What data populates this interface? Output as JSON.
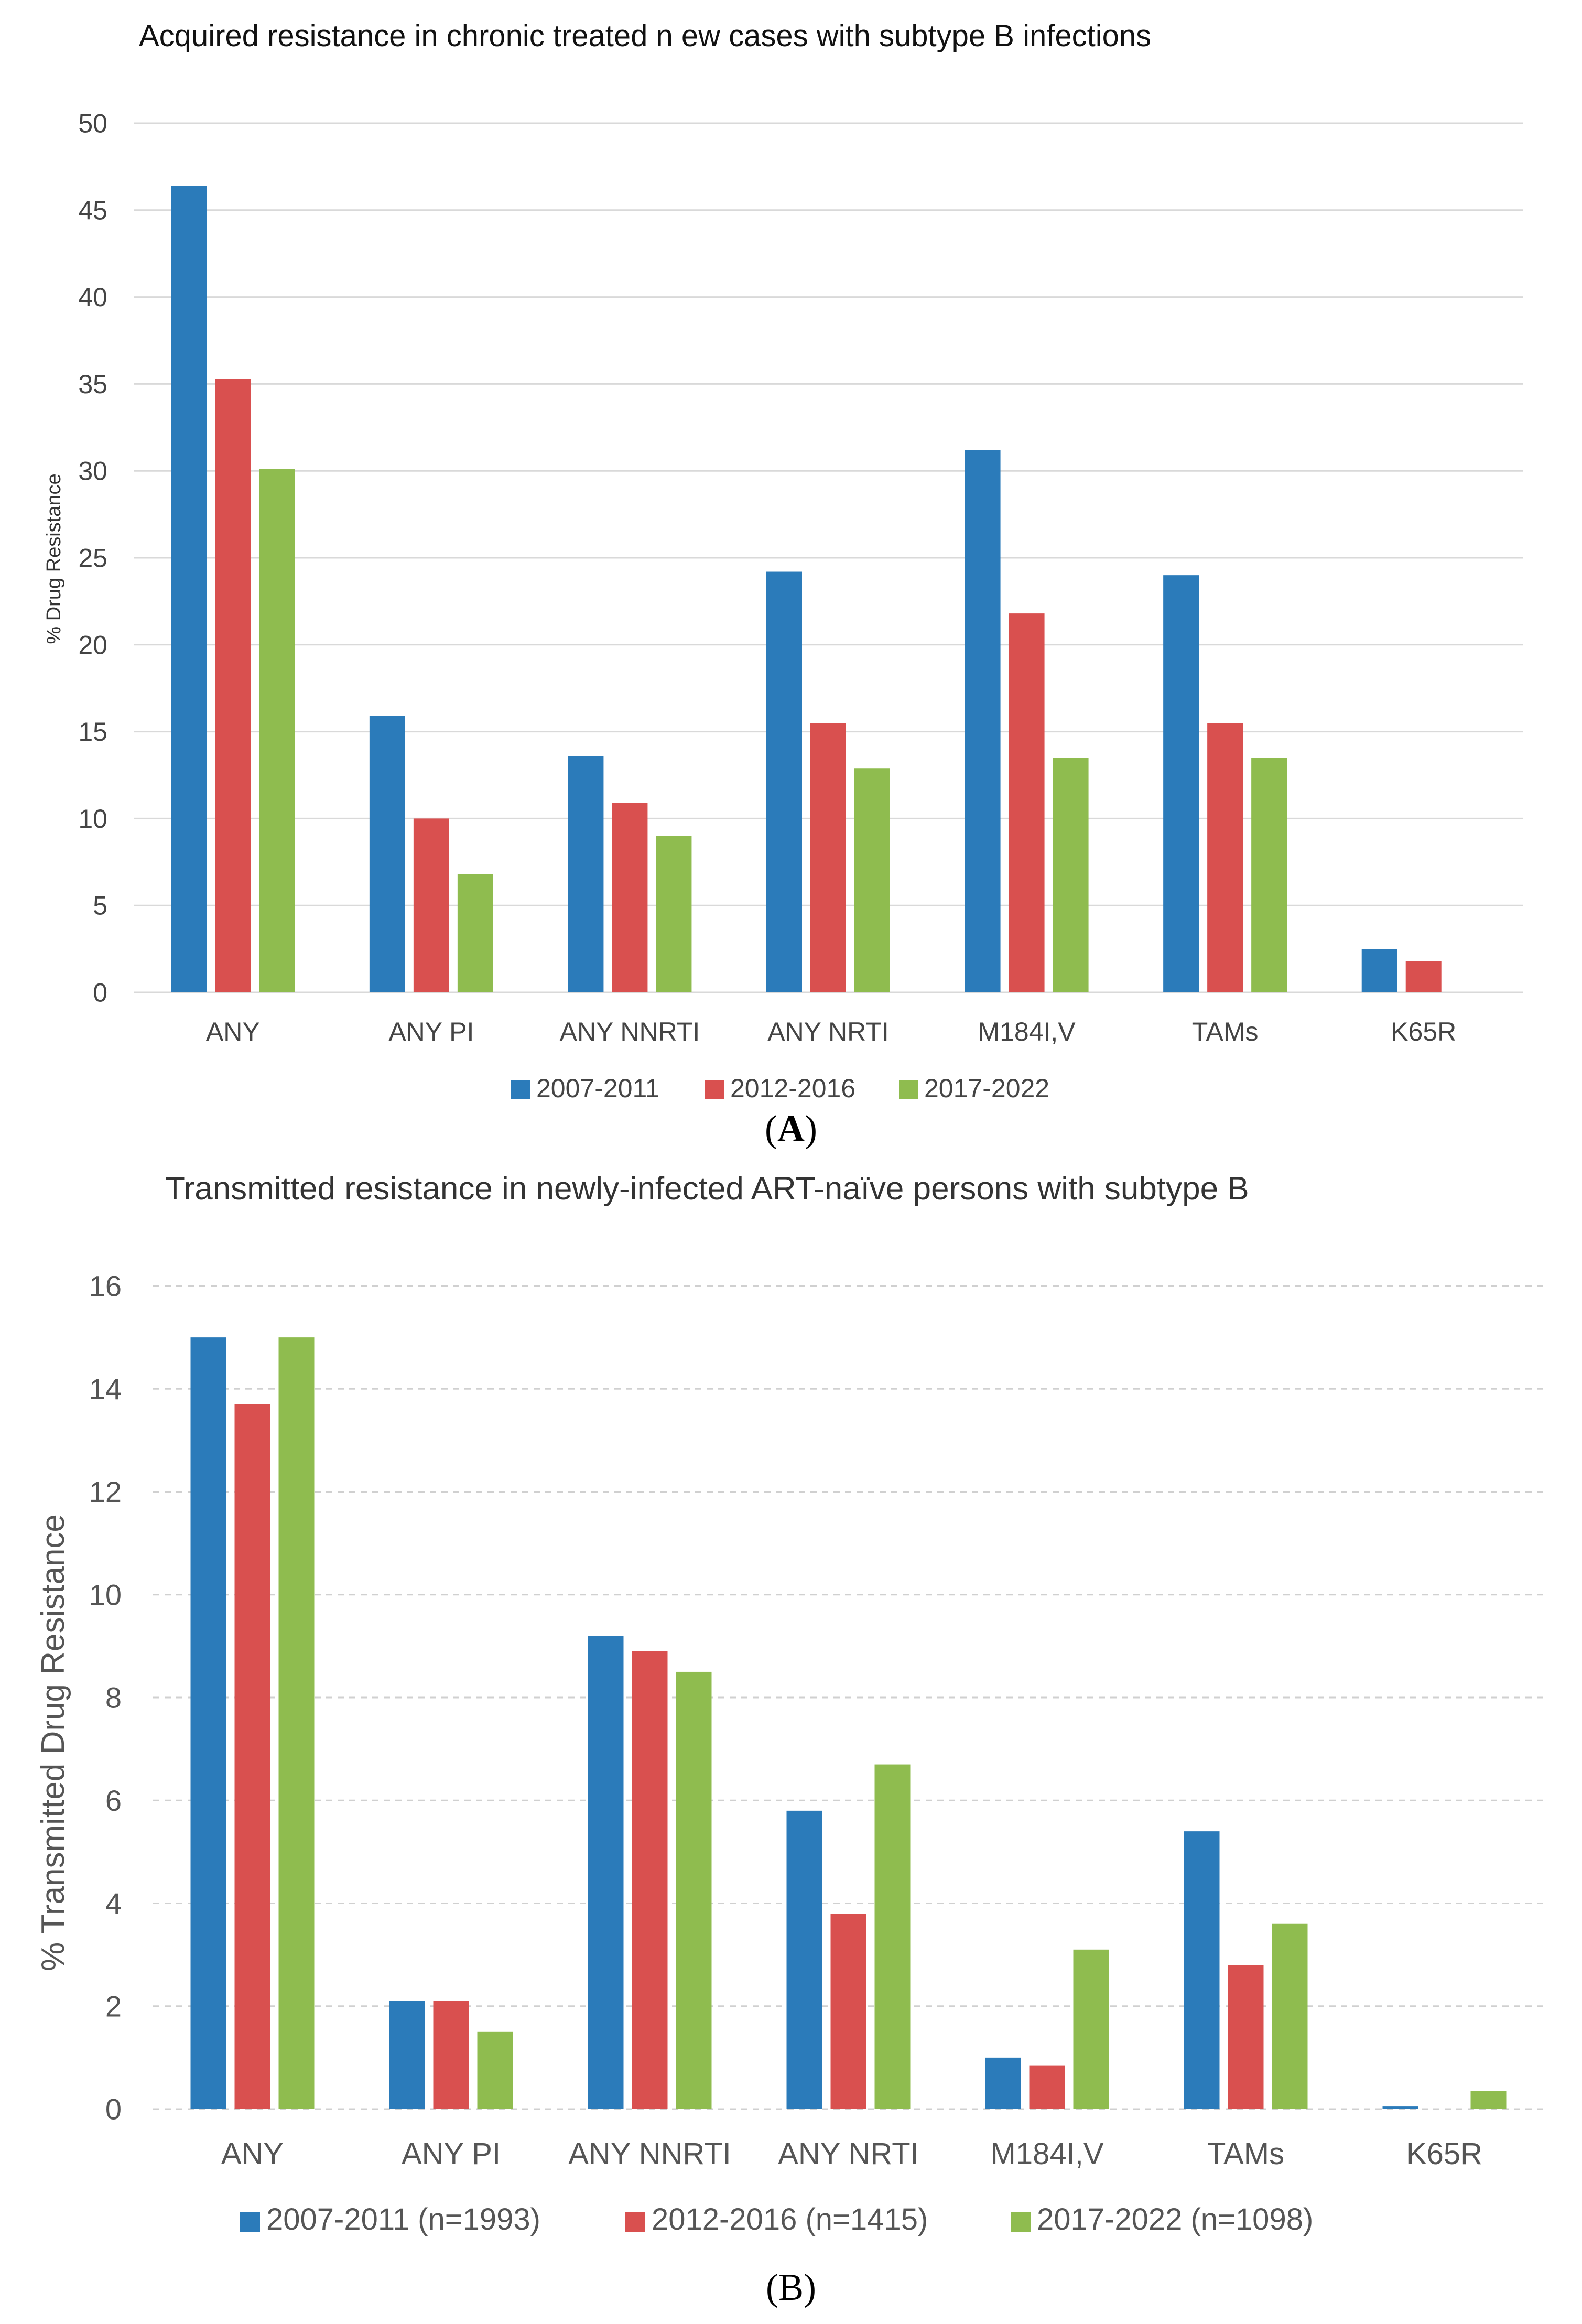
{
  "chart_data": [
    {
      "type": "bar",
      "title": "Acquired resistance in chronic treated n ew cases with subtype B infections",
      "xlabel": "",
      "ylabel": "% Drug Resistance",
      "ylim": [
        0,
        50
      ],
      "yticks": [
        "0",
        "5",
        "10",
        "15",
        "20",
        "25",
        "30",
        "35",
        "40",
        "45",
        "50"
      ],
      "grid": true,
      "legend_position": "bottom",
      "categories": [
        "ANY",
        "ANY PI",
        "ANY NNRTI",
        "ANY NRTI",
        "M184I,V",
        "TAMs",
        "K65R"
      ],
      "series": [
        {
          "name": "2007-2011",
          "color": "#2b7bba",
          "values": [
            46.4,
            15.9,
            13.6,
            24.2,
            31.2,
            24.0,
            2.5
          ]
        },
        {
          "name": "2012-2016",
          "color": "#d9504f",
          "values": [
            35.3,
            10.0,
            10.9,
            15.5,
            21.8,
            15.5,
            1.8
          ]
        },
        {
          "name": "2017-2022",
          "color": "#8fbc4f",
          "values": [
            30.1,
            6.8,
            9.0,
            12.9,
            13.5,
            13.5,
            0
          ]
        }
      ],
      "panel_label_parts": [
        "(",
        "A",
        ")"
      ]
    },
    {
      "type": "bar",
      "title": "Transmitted resistance in newly-infected  ART-naïve persons with subtype B",
      "xlabel": "",
      "ylabel": "% Transmitted Drug Resistance",
      "ylim": [
        0,
        16
      ],
      "yticks": [
        "0",
        "2",
        "4",
        "6",
        "8",
        "10",
        "12",
        "14",
        "16"
      ],
      "grid": true,
      "legend_position": "bottom",
      "categories": [
        "ANY",
        "ANY PI",
        "ANY NNRTI",
        "ANY NRTI",
        "M184I,V",
        "TAMs",
        "K65R"
      ],
      "series": [
        {
          "name": "2007-2011 (n=1993)",
          "color": "#2b7bba",
          "values": [
            15.0,
            2.1,
            9.2,
            5.8,
            1.0,
            5.4,
            0.05
          ]
        },
        {
          "name": "2012-2016 (n=1415)",
          "color": "#d9504f",
          "values": [
            13.7,
            2.1,
            8.9,
            3.8,
            0.85,
            2.8,
            0
          ]
        },
        {
          "name": "2017-2022 (n=1098)",
          "color": "#8fbc4f",
          "values": [
            15.0,
            1.5,
            8.5,
            6.7,
            3.1,
            3.6,
            0.35
          ]
        }
      ],
      "panel_label": "(B)"
    }
  ]
}
